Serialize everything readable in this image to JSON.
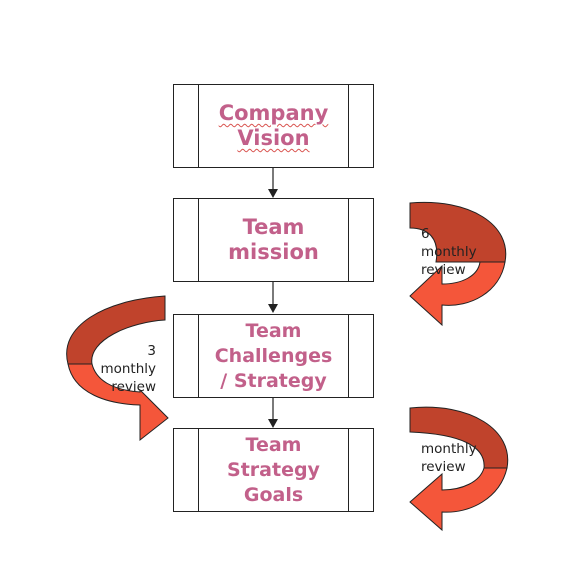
{
  "boxes": {
    "vision_line1": "Company",
    "vision_line2": "Vision",
    "mission_line1": "Team",
    "mission_line2": "mission",
    "challenges_line1": "Team",
    "challenges_line2": "Challenges",
    "challenges_line3": "/ Strategy",
    "goals_line1": "Team",
    "goals_line2": "Strategy",
    "goals_line3": "Goals"
  },
  "reviews": {
    "right_top_number": "6",
    "right_top_word1": "monthly",
    "right_top_word2": "review",
    "left_number": "3",
    "left_word1": "monthly",
    "left_word2": "review",
    "right_bottom_word1": "monthly",
    "right_bottom_word2": "review"
  },
  "colors": {
    "label_pink": "#c2608a",
    "arrow_dark_red": "#c0432c",
    "arrow_orange_red": "#f4563a",
    "connector": "#222222"
  }
}
